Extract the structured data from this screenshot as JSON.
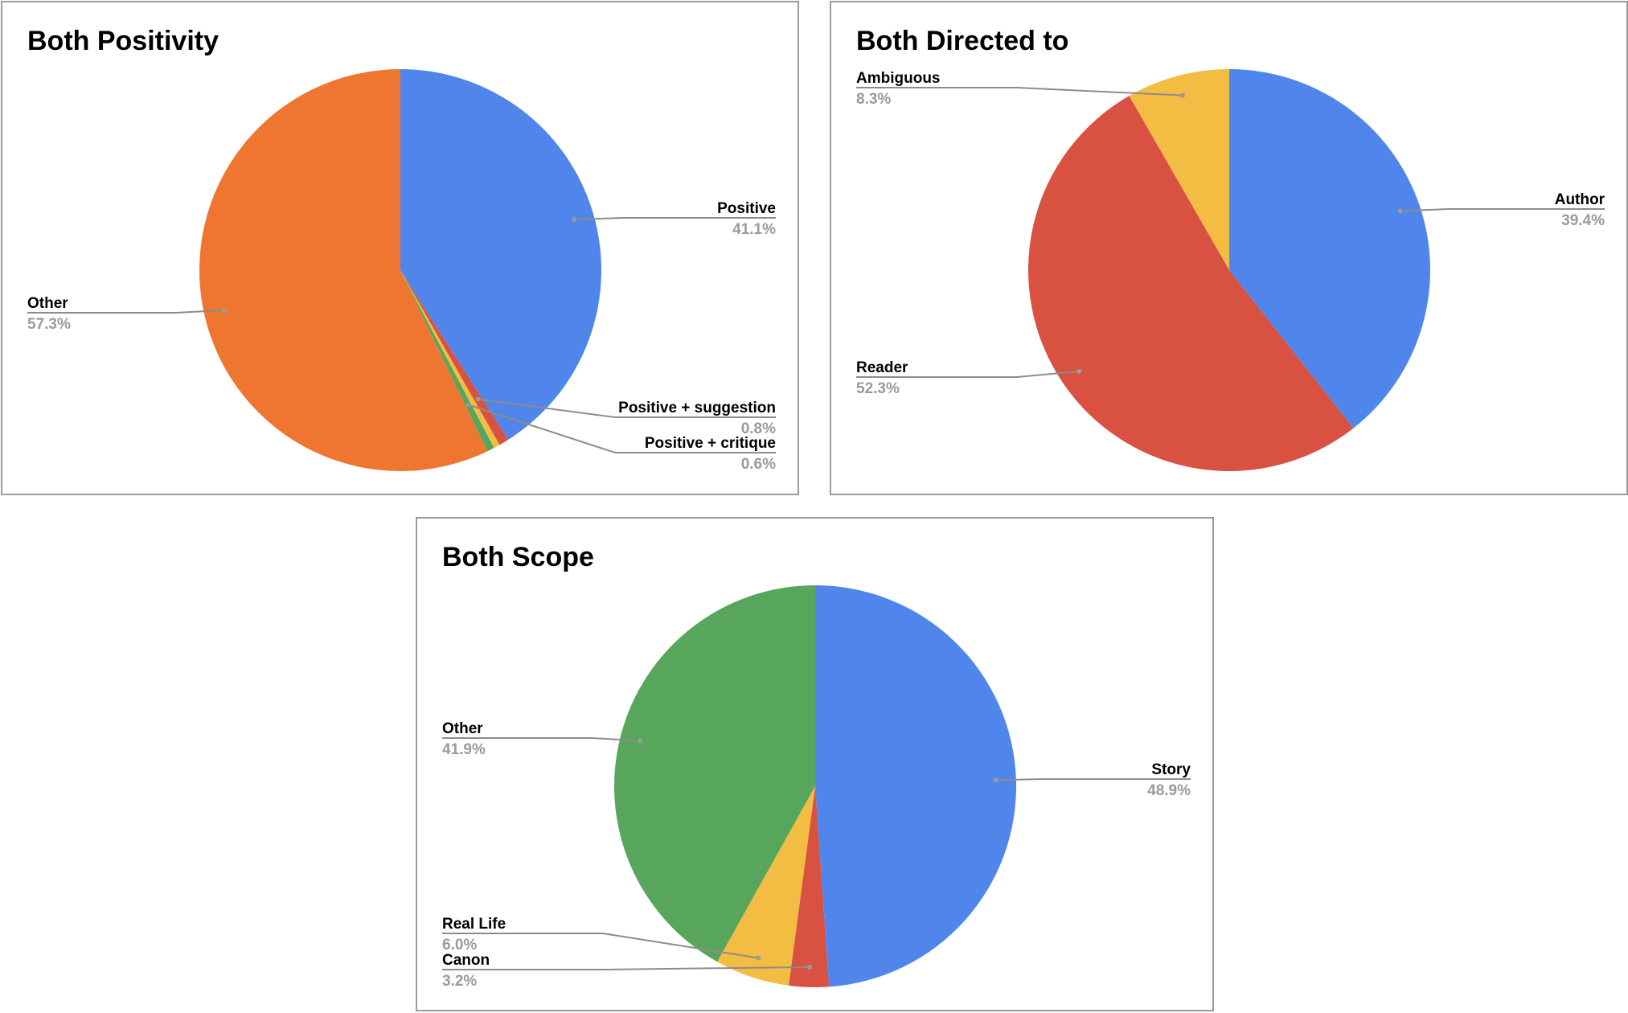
{
  "colors": {
    "blue": "#5086EC",
    "orange": "#EE7631",
    "red": "#D95141",
    "yellow": "#F2BD42",
    "green": "#58A65C"
  },
  "chart_data": [
    {
      "type": "pie",
      "title": "Both Positivity",
      "slices": [
        {
          "label": "Positive",
          "pct": "41.1%",
          "value": 41.1,
          "color": "#5086EC"
        },
        {
          "label": "Positive + suggestion",
          "pct": "0.8%",
          "value": 0.8,
          "color": "#D95141"
        },
        {
          "label": "",
          "pct": "",
          "value": 0.5,
          "color": "#F2BD42"
        },
        {
          "label": "Positive + critique",
          "pct": "0.6%",
          "value": 0.6,
          "color": "#58A65C"
        },
        {
          "label": "Other",
          "pct": "57.3%",
          "value": 57.3,
          "color": "#EE7631"
        }
      ]
    },
    {
      "type": "pie",
      "title": "Both Directed to",
      "slices": [
        {
          "label": "Author",
          "pct": "39.4%",
          "value": 39.4,
          "color": "#5086EC"
        },
        {
          "label": "Reader",
          "pct": "52.3%",
          "value": 52.3,
          "color": "#D95141"
        },
        {
          "label": "Ambiguous",
          "pct": "8.3%",
          "value": 8.3,
          "color": "#F2BD42"
        }
      ]
    },
    {
      "type": "pie",
      "title": "Both Scope",
      "slices": [
        {
          "label": "Story",
          "pct": "48.9%",
          "value": 48.9,
          "color": "#5086EC"
        },
        {
          "label": "Canon",
          "pct": "3.2%",
          "value": 3.2,
          "color": "#D95141"
        },
        {
          "label": "Real Life",
          "pct": "6.0%",
          "value": 6.0,
          "color": "#F2BD42"
        },
        {
          "label": "Other",
          "pct": "41.9%",
          "value": 41.9,
          "color": "#58A65C"
        }
      ]
    }
  ]
}
